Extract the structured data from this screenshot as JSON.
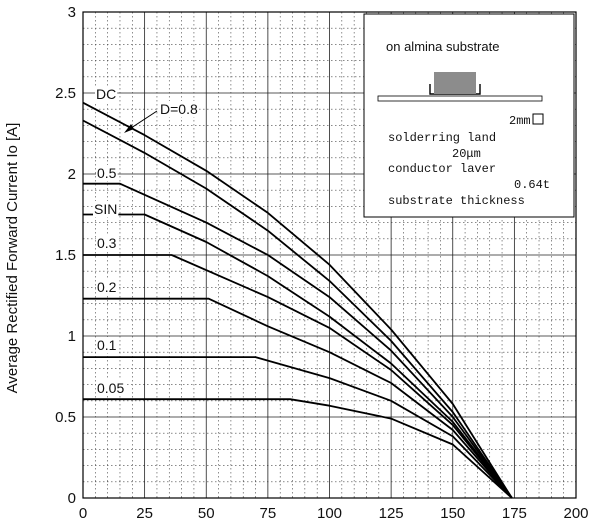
{
  "chart_data": {
    "type": "line",
    "ylabel": "Average Rectified Forward Current  Io     [A]",
    "xlim": [
      0,
      200
    ],
    "ylim": [
      0,
      3
    ],
    "x_ticks": [
      "0",
      "25",
      "50",
      "75",
      "100",
      "125",
      "150",
      "175",
      "200"
    ],
    "y_ticks": [
      "0",
      "0.5",
      "1",
      "1.5",
      "2",
      "2.5",
      "3"
    ],
    "grid": true,
    "series": [
      {
        "name": "DC",
        "points": [
          [
            0,
            2.44
          ],
          [
            25,
            2.24
          ],
          [
            50,
            2.02
          ],
          [
            75,
            1.76
          ],
          [
            100,
            1.44
          ],
          [
            125,
            1.04
          ],
          [
            150,
            0.58
          ],
          [
            174,
            0
          ]
        ]
      },
      {
        "name": "D=0.8",
        "points": [
          [
            0,
            2.33
          ],
          [
            25,
            2.13
          ],
          [
            50,
            1.91
          ],
          [
            75,
            1.65
          ],
          [
            100,
            1.34
          ],
          [
            125,
            0.97
          ],
          [
            150,
            0.53
          ],
          [
            174,
            0
          ]
        ]
      },
      {
        "name": "0.5",
        "points": [
          [
            0,
            1.94
          ],
          [
            15,
            1.94
          ],
          [
            50,
            1.7
          ],
          [
            75,
            1.5
          ],
          [
            100,
            1.24
          ],
          [
            125,
            0.91
          ],
          [
            150,
            0.5
          ],
          [
            174,
            0
          ]
        ]
      },
      {
        "name": "SIN",
        "points": [
          [
            0,
            1.75
          ],
          [
            25,
            1.75
          ],
          [
            50,
            1.58
          ],
          [
            75,
            1.37
          ],
          [
            100,
            1.12
          ],
          [
            125,
            0.83
          ],
          [
            150,
            0.47
          ],
          [
            174,
            0
          ]
        ]
      },
      {
        "name": "0.3",
        "points": [
          [
            0,
            1.5
          ],
          [
            36,
            1.5
          ],
          [
            75,
            1.24
          ],
          [
            100,
            1.05
          ],
          [
            125,
            0.79
          ],
          [
            150,
            0.45
          ],
          [
            174,
            0
          ]
        ]
      },
      {
        "name": "0.2",
        "points": [
          [
            0,
            1.23
          ],
          [
            51,
            1.23
          ],
          [
            75,
            1.06
          ],
          [
            100,
            0.9
          ],
          [
            125,
            0.71
          ],
          [
            150,
            0.42
          ],
          [
            174,
            0
          ]
        ]
      },
      {
        "name": "0.1",
        "points": [
          [
            0,
            0.87
          ],
          [
            70,
            0.87
          ],
          [
            100,
            0.74
          ],
          [
            125,
            0.6
          ],
          [
            150,
            0.38
          ],
          [
            174,
            0
          ]
        ]
      },
      {
        "name": "0.05",
        "points": [
          [
            0,
            0.61
          ],
          [
            84,
            0.61
          ],
          [
            100,
            0.57
          ],
          [
            125,
            0.49
          ],
          [
            150,
            0.33
          ],
          [
            174,
            0
          ]
        ]
      }
    ],
    "inset": {
      "title": "on almina substrate",
      "land_size": "2mm",
      "land_label": "solderring land",
      "conductor_thickness": "20μm",
      "conductor_label": "conductor laver",
      "substrate_value": "0.64t",
      "substrate_label": "substrate thickness"
    }
  }
}
